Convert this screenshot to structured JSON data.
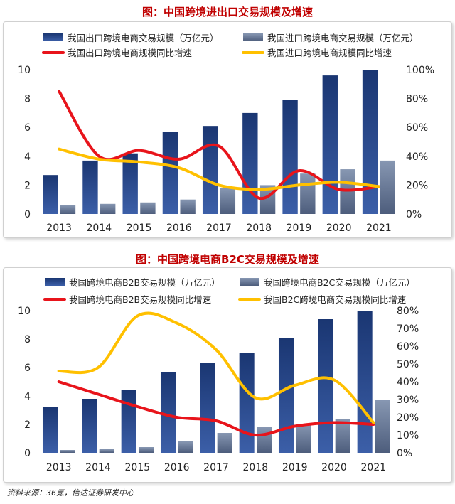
{
  "source": "资料来源：36氪，信达证券研发中心",
  "chart_data": [
    {
      "type": "bar",
      "title": "图：中国跨境进出口交易规模及增速",
      "categories": [
        "2013",
        "2014",
        "2015",
        "2016",
        "2017",
        "2018",
        "2019",
        "2020",
        "2021"
      ],
      "y_left": {
        "range": [
          0,
          10
        ],
        "ticks": [
          "0",
          "2",
          "4",
          "6",
          "8",
          "10"
        ]
      },
      "y_right": {
        "range": [
          0,
          100
        ],
        "ticks": [
          "0%",
          "20%",
          "40%",
          "60%",
          "80%",
          "100%"
        ]
      },
      "legend_position": "top",
      "series": [
        {
          "name": "我国出口跨境电商交易规模（万亿元）",
          "kind": "bar",
          "axis": "left",
          "color": "#1f3d7a",
          "values": [
            2.7,
            3.7,
            4.2,
            5.7,
            6.1,
            7.0,
            7.9,
            9.6,
            10.0
          ]
        },
        {
          "name": "我国进口跨境电商交易规模（万亿元）",
          "kind": "bar",
          "axis": "left",
          "color": "#6e7f99",
          "values": [
            0.6,
            0.7,
            0.8,
            1.0,
            1.8,
            2.0,
            2.8,
            3.1,
            3.7
          ]
        },
        {
          "name": "我国出口跨境电商规模同比增速",
          "kind": "line",
          "axis": "right",
          "color": "#e8141b",
          "values": [
            85,
            40,
            44,
            38,
            47,
            11,
            30,
            17,
            19
          ]
        },
        {
          "name": "我国进口跨境电商规模同比增速",
          "kind": "line",
          "axis": "right",
          "color": "#ffc000",
          "values": [
            45,
            38,
            36,
            32,
            20,
            17,
            20,
            22,
            19
          ]
        }
      ]
    },
    {
      "type": "bar",
      "title": "图：中国跨境电商B2C交易规模及增速",
      "categories": [
        "2013",
        "2014",
        "2015",
        "2016",
        "2017",
        "2018",
        "2019",
        "2020",
        "2021"
      ],
      "y_left": {
        "range": [
          0,
          10
        ],
        "ticks": [
          "0",
          "2",
          "4",
          "6",
          "8",
          "10"
        ]
      },
      "y_right": {
        "range": [
          0,
          80
        ],
        "ticks": [
          "0%",
          "10%",
          "20%",
          "30%",
          "40%",
          "50%",
          "60%",
          "70%",
          "80%"
        ]
      },
      "legend_position": "top",
      "series": [
        {
          "name": "我国跨境电商B2B交易规模（万亿元）",
          "kind": "bar",
          "axis": "left",
          "color": "#1f3d7a",
          "values": [
            3.2,
            3.8,
            4.4,
            5.7,
            6.3,
            7.0,
            8.1,
            9.4,
            10.0
          ]
        },
        {
          "name": "我国跨境电商B2C交易规模（万亿元）",
          "kind": "bar",
          "axis": "left",
          "color": "#6e7f99",
          "values": [
            0.2,
            0.25,
            0.4,
            0.8,
            1.4,
            1.8,
            2.0,
            2.4,
            3.7
          ]
        },
        {
          "name": "我国跨境电商B2B交易规模同比增速",
          "kind": "line",
          "axis": "right",
          "color": "#e8141b",
          "values": [
            40,
            33,
            26,
            20,
            18,
            10,
            15,
            17,
            16
          ]
        },
        {
          "name": "我国B2C跨境电商交易规模同比增速",
          "kind": "line",
          "axis": "right",
          "color": "#ffc000",
          "values": [
            46,
            48,
            77,
            73,
            58,
            31,
            38,
            41,
            17
          ]
        }
      ]
    }
  ]
}
